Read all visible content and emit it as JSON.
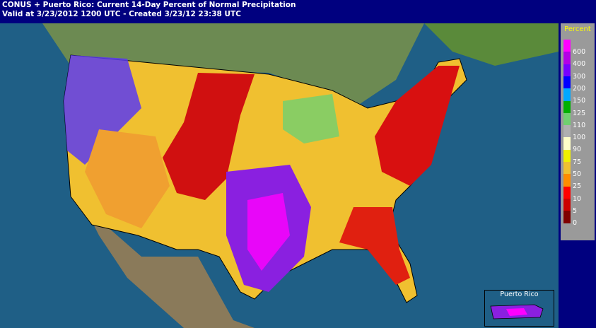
{
  "header": {
    "title": "CONUS + Puerto Rico: Current 14-Day Percent of Normal Precipitation",
    "subtitle": "Valid at 3/23/2012 1200 UTC - Created 3/23/12 23:38 UTC"
  },
  "legend": {
    "title": "Percent",
    "items": [
      {
        "label": 600,
        "color": "#ff00ff"
      },
      {
        "label": 400,
        "color": "#b400e6"
      },
      {
        "label": 300,
        "color": "#7800ff"
      },
      {
        "label": 200,
        "color": "#0000ff"
      },
      {
        "label": 150,
        "color": "#00a8ff"
      },
      {
        "label": 125,
        "color": "#00b000"
      },
      {
        "label": 110,
        "color": "#70d070"
      },
      {
        "label": 100,
        "color": "#b0b0b0"
      },
      {
        "label": 90,
        "color": "#ffffc8"
      },
      {
        "label": 75,
        "color": "#f0f000"
      },
      {
        "label": 50,
        "color": "#f0c030"
      },
      {
        "label": 25,
        "color": "#ff8c00"
      },
      {
        "label": 10,
        "color": "#ff0000"
      },
      {
        "label": 5,
        "color": "#cc0000"
      },
      {
        "label": 0,
        "color": "#800000"
      }
    ]
  },
  "inset": {
    "label": "Puerto Rico"
  }
}
